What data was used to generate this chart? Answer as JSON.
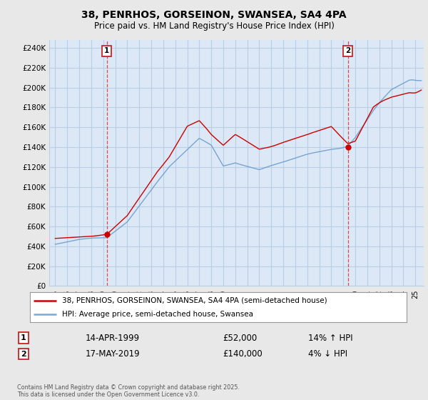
{
  "title": "38, PENRHOS, GORSEINON, SWANSEA, SA4 4PA",
  "subtitle": "Price paid vs. HM Land Registry's House Price Index (HPI)",
  "legend_line1": "38, PENRHOS, GORSEINON, SWANSEA, SA4 4PA (semi-detached house)",
  "legend_line2": "HPI: Average price, semi-detached house, Swansea",
  "transaction1_date": "14-APR-1999",
  "transaction1_price": "£52,000",
  "transaction1_hpi": "14% ↑ HPI",
  "transaction1_year": 1999.29,
  "transaction1_value": 52000,
  "transaction2_date": "17-MAY-2019",
  "transaction2_price": "£140,000",
  "transaction2_hpi": "4% ↓ HPI",
  "transaction2_year": 2019.38,
  "transaction2_value": 140000,
  "ylabel_vals": [
    0,
    20000,
    40000,
    60000,
    80000,
    100000,
    120000,
    140000,
    160000,
    180000,
    200000,
    220000,
    240000
  ],
  "ylabel_labels": [
    "£0",
    "£20K",
    "£40K",
    "£60K",
    "£80K",
    "£100K",
    "£120K",
    "£140K",
    "£160K",
    "£180K",
    "£200K",
    "£220K",
    "£240K"
  ],
  "ylim": [
    0,
    248000
  ],
  "xlim": [
    1994.5,
    2025.7
  ],
  "bg_color": "#e8e8e8",
  "plot_bg_color": "#dce8f5",
  "red_line_color": "#cc0000",
  "blue_line_color": "#6699cc",
  "grid_color": "#b8cfe8",
  "vline_color": "#dd2222",
  "dot_color": "#cc0000",
  "footer": "Contains HM Land Registry data © Crown copyright and database right 2025.\nThis data is licensed under the Open Government Licence v3.0."
}
